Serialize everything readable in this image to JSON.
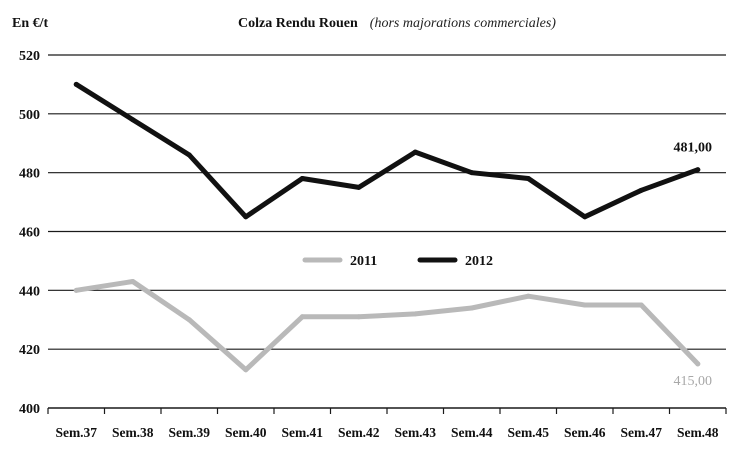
{
  "chart_data": {
    "type": "line",
    "title": "Colza Rendu Rouen",
    "subtitle": "(hors majorations commerciales)",
    "ylabel": "En €/t",
    "xlabel": "",
    "ylim": [
      400,
      520
    ],
    "yticks": [
      "400",
      "420",
      "440",
      "460",
      "480",
      "500",
      "520"
    ],
    "categories": [
      "Sem.37",
      "Sem.38",
      "Sem.39",
      "Sem.40",
      "Sem.41",
      "Sem.42",
      "Sem.43",
      "Sem.44",
      "Sem.45",
      "Sem.46",
      "Sem.47",
      "Sem.48"
    ],
    "grid": "horizontal",
    "legend_position": "center",
    "series": [
      {
        "name": "2011",
        "color": "#b9b9b9",
        "values": [
          440,
          443,
          430,
          413,
          431,
          431,
          432,
          434,
          438,
          435,
          435,
          415
        ],
        "end_label": "415,00"
      },
      {
        "name": "2012",
        "color": "#111111",
        "values": [
          510,
          498,
          486,
          465,
          478,
          475,
          487,
          480,
          478,
          465,
          474,
          481
        ],
        "end_label": "481,00"
      }
    ]
  }
}
